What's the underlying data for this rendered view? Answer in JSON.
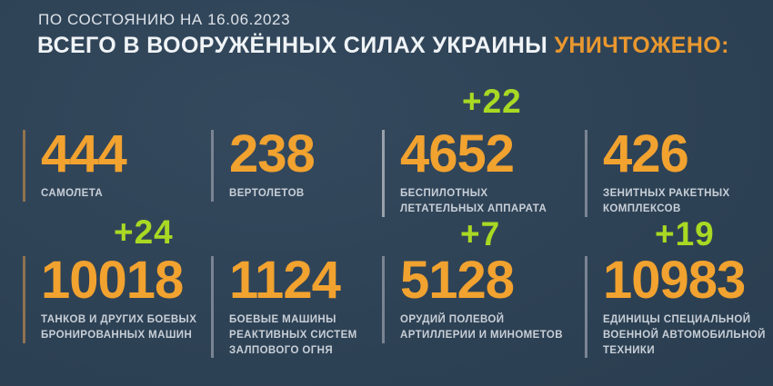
{
  "header": {
    "date_line": "ПО СОСТОЯНИЮ НА 16.06.2023",
    "title_main": "ВСЕГО В ВООРУЖЁННЫХ СИЛАХ УКРАИНЫ ",
    "title_accent": "УНИЧТОЖЕНО:"
  },
  "colors": {
    "background": "#2d4154",
    "number_orange": "#f1a22f",
    "accent_orange": "#e9982f",
    "delta_green": "#a9d923",
    "label_gray": "#c8cfd7"
  },
  "stats": [
    {
      "value": "444",
      "delta": "",
      "line1": "САМОЛЕТА",
      "line2": "",
      "line3": ""
    },
    {
      "value": "238",
      "delta": "",
      "line1": "ВЕРТОЛЕТОВ",
      "line2": "",
      "line3": ""
    },
    {
      "value": "4652",
      "delta": "+22",
      "line1": "БЕСПИЛОТНЫХ",
      "line2": "ЛЕТАТЕЛЬНЫХ АППАРАТА",
      "line3": ""
    },
    {
      "value": "426",
      "delta": "",
      "line1": "ЗЕНИТНЫХ РАКЕТНЫХ",
      "line2": "КОМПЛЕКСОВ",
      "line3": ""
    },
    {
      "value": "10018",
      "delta": "+24",
      "line1": "ТАНКОВ И ДРУГИХ БОЕВЫХ",
      "line2": "БРОНИРОВАННЫХ МАШИН",
      "line3": ""
    },
    {
      "value": "1124",
      "delta": "",
      "line1": "БОЕВЫЕ МАШИНЫ",
      "line2": "РЕАКТИВНЫХ СИСТЕМ",
      "line3": "ЗАЛПОВОГО ОГНЯ"
    },
    {
      "value": "5128",
      "delta": "+7",
      "line1": "ОРУДИЙ ПОЛЕВОЙ",
      "line2": "АРТИЛЛЕРИИ И МИНОМЕТОВ",
      "line3": ""
    },
    {
      "value": "10983",
      "delta": "+19",
      "line1": "ЕДИНИЦЫ СПЕЦИАЛЬНОЙ",
      "line2": "ВОЕННОЙ АВТОМОБИЛЬНОЙ",
      "line3": "ТЕХНИКИ"
    }
  ],
  "chart_data": {
    "type": "table",
    "title": "ВСЕГО В ВООРУЖЁННЫХ СИЛАХ УКРАИНЫ УНИЧТОЖЕНО:",
    "subtitle": "ПО СОСТОЯНИЮ НА 16.06.2023",
    "categories": [
      "самолета",
      "вертолетов",
      "беспилотных летательных аппарата",
      "зенитных ракетных комплексов",
      "танков и других боевых бронированных машин",
      "боевые машины реактивных систем залпового огня",
      "орудий полевой артиллерии и минометов",
      "единицы специальной военной автомобильной техники"
    ],
    "values": [
      444,
      238,
      4652,
      426,
      10018,
      1124,
      5128,
      10983
    ],
    "daily_increase": [
      null,
      null,
      22,
      null,
      24,
      null,
      7,
      19
    ],
    "legend_position": "none",
    "grid": false
  }
}
